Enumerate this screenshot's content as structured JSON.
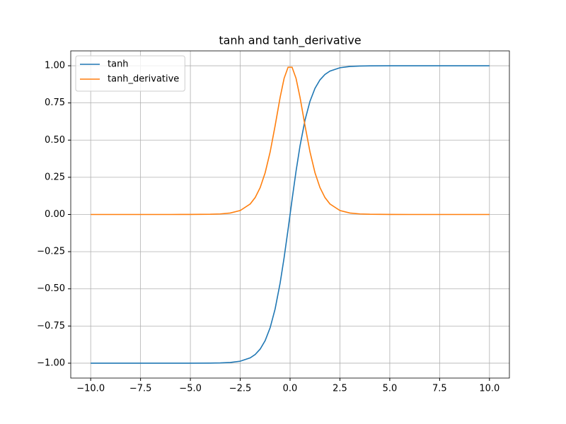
{
  "chart_data": {
    "type": "line",
    "title": "tanh and tanh_derivative",
    "x": [
      -10,
      -9,
      -8,
      -7,
      -6,
      -5,
      -4,
      -3.5,
      -3,
      -2.5,
      -2,
      -1.75,
      -1.5,
      -1.25,
      -1,
      -0.75,
      -0.5,
      -0.3,
      -0.1,
      0.1,
      0.3,
      0.5,
      0.75,
      1,
      1.25,
      1.5,
      1.75,
      2,
      2.5,
      3,
      3.5,
      4,
      5,
      6,
      7,
      8,
      9,
      10
    ],
    "series": [
      {
        "name": "tanh",
        "color": "#1f77b4",
        "values": [
          -1,
          -1,
          -1,
          -1,
          -1,
          -0.9999,
          -0.9993,
          -0.9982,
          -0.9951,
          -0.9866,
          -0.964,
          -0.9414,
          -0.9051,
          -0.8483,
          -0.7616,
          -0.6351,
          -0.4621,
          -0.2913,
          -0.0997,
          0.0997,
          0.2913,
          0.4621,
          0.6351,
          0.7616,
          0.8483,
          0.9051,
          0.9414,
          0.964,
          0.9866,
          0.9951,
          0.9982,
          0.9993,
          0.9999,
          1,
          1,
          1,
          1,
          1
        ]
      },
      {
        "name": "tanh_derivative",
        "color": "#ff7f0e",
        "values": [
          0,
          0,
          0,
          0,
          0,
          0.0002,
          0.0013,
          0.0036,
          0.0099,
          0.0266,
          0.0707,
          0.1138,
          0.1807,
          0.2804,
          0.42,
          0.5966,
          0.7864,
          0.9151,
          0.9901,
          0.9901,
          0.9151,
          0.7864,
          0.5966,
          0.42,
          0.2804,
          0.1807,
          0.1138,
          0.0707,
          0.0266,
          0.0099,
          0.0036,
          0.0013,
          0.0002,
          0,
          0,
          0,
          0,
          0
        ]
      }
    ],
    "xlim": [
      -11,
      11
    ],
    "xticks": [
      {
        "value": -10,
        "label": "−10.0"
      },
      {
        "value": -7.5,
        "label": "−7.5"
      },
      {
        "value": -5,
        "label": "−5.0"
      },
      {
        "value": -2.5,
        "label": "−2.5"
      },
      {
        "value": 0,
        "label": "0.0"
      },
      {
        "value": 2.5,
        "label": "2.5"
      },
      {
        "value": 5,
        "label": "5.0"
      },
      {
        "value": 7.5,
        "label": "7.5"
      },
      {
        "value": 10,
        "label": "10.0"
      }
    ],
    "ylim": [
      -1.1,
      1.1
    ],
    "yticks": [
      {
        "value": -1,
        "label": "−1.00"
      },
      {
        "value": -0.75,
        "label": "−0.75"
      },
      {
        "value": -0.5,
        "label": "−0.50"
      },
      {
        "value": -0.25,
        "label": "−0.25"
      },
      {
        "value": 0,
        "label": "0.00"
      },
      {
        "value": 0.25,
        "label": "0.25"
      },
      {
        "value": 0.5,
        "label": "0.50"
      },
      {
        "value": 0.75,
        "label": "0.75"
      },
      {
        "value": 1,
        "label": "1.00"
      }
    ],
    "grid": true,
    "legend": "upper left"
  }
}
